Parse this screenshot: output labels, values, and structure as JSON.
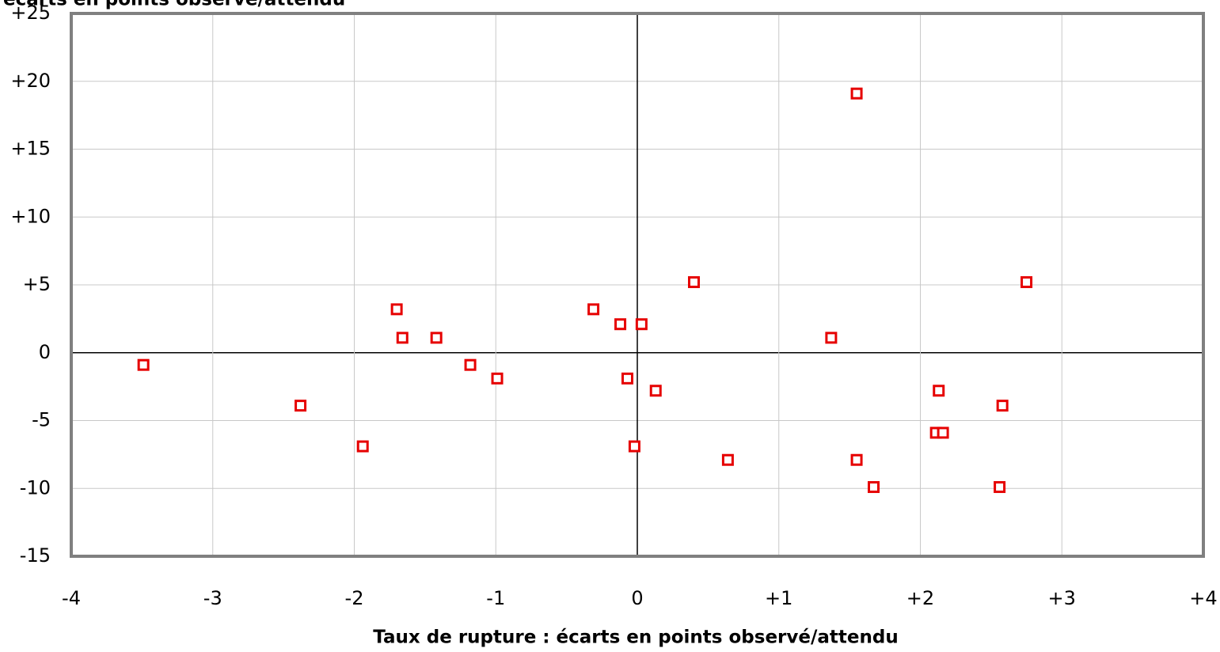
{
  "chart_data": {
    "type": "scatter",
    "y_label": "écarts en points observé/attendu",
    "x_label": "Taux de rupture : écarts en points observé/attendu",
    "color": "#e60000",
    "x": [
      -3.49,
      -2.38,
      -1.94,
      -1.7,
      -1.66,
      -1.42,
      -1.18,
      -0.99,
      -0.31,
      -0.12,
      0.03,
      -0.07,
      0.13,
      -0.02,
      0.4,
      0.64,
      1.37,
      1.55,
      1.55,
      1.67,
      2.13,
      2.11,
      2.16,
      2.58,
      2.56,
      2.75
    ],
    "values": [
      -0.9,
      -3.9,
      -6.9,
      3.2,
      1.1,
      1.1,
      -0.9,
      -1.9,
      3.2,
      2.1,
      2.1,
      -1.9,
      -2.8,
      -6.9,
      5.2,
      -7.9,
      1.1,
      19.1,
      -7.9,
      -9.9,
      -2.8,
      -5.9,
      -5.9,
      -3.9,
      -9.9,
      5.2
    ],
    "xlim": [
      -4,
      4
    ],
    "xticks": [
      -4,
      -3,
      -2,
      -1,
      0,
      {
        "value": 1,
        "label": "+1"
      },
      {
        "value": 2,
        "label": "+2"
      },
      {
        "value": 3,
        "label": "+3"
      },
      {
        "value": 4,
        "label": "+4"
      }
    ],
    "ylim": [
      -15,
      25
    ],
    "yticks": [
      -15,
      -10,
      -5,
      0,
      {
        "value": 5,
        "label": "+5"
      },
      {
        "value": 10,
        "label": "+10"
      },
      {
        "value": 15,
        "label": "+15"
      },
      {
        "value": 20,
        "label": "+20"
      },
      {
        "value": 25,
        "label": "+25"
      }
    ],
    "grid": true
  }
}
